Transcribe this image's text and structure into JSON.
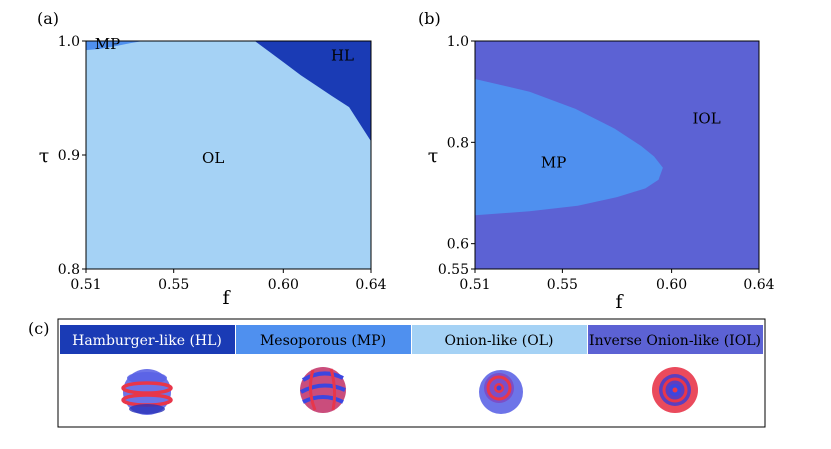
{
  "colors": {
    "HL": "#1a3bb5",
    "MP": "#4f90ef",
    "OL": "#a5d2f5",
    "IOL": "#5c62d4",
    "red": "#e8364a",
    "blue": "#3c46e0"
  },
  "chart_data": [
    {
      "panel": "(a)",
      "type": "area",
      "title": "",
      "xlabel": "f",
      "ylabel": "τ",
      "xlim": [
        0.51,
        0.64
      ],
      "ylim": [
        0.8,
        1.0
      ],
      "xticks": [
        0.51,
        0.55,
        0.6,
        0.64
      ],
      "xtick_labels": [
        "0.51",
        "0.55",
        "0.60",
        "0.64"
      ],
      "yticks": [
        0.8,
        0.9,
        1.0
      ],
      "ytick_labels": [
        "0.8",
        "0.9",
        "1.0"
      ],
      "background_phase": "OL",
      "regions": [
        {
          "name": "MP",
          "label": "MP",
          "label_at": [
            0.514,
            0.993
          ],
          "boundary": [
            [
              0.51,
              0.992
            ],
            [
              0.516,
              0.993
            ],
            [
              0.522,
              0.995
            ],
            [
              0.53,
              0.998
            ],
            [
              0.536,
              1.0
            ]
          ]
        },
        {
          "name": "HL",
          "label": "HL",
          "label_at": [
            0.627,
            0.983
          ],
          "boundary": [
            [
              0.587,
              1.0
            ],
            [
              0.594,
              0.99
            ],
            [
              0.601,
              0.98
            ],
            [
              0.608,
              0.97
            ],
            [
              0.615,
              0.961
            ],
            [
              0.622,
              0.952
            ],
            [
              0.63,
              0.942
            ],
            [
              0.64,
              0.912
            ]
          ]
        }
      ],
      "annotations": [
        {
          "text": "OL",
          "at": [
            0.568,
            0.893
          ]
        }
      ]
    },
    {
      "panel": "(b)",
      "type": "area",
      "title": "",
      "xlabel": "f",
      "ylabel": "τ",
      "xlim": [
        0.51,
        0.64
      ],
      "ylim": [
        0.55,
        1.0
      ],
      "xticks": [
        0.51,
        0.55,
        0.6,
        0.64
      ],
      "xtick_labels": [
        "0.51",
        "0.55",
        "0.60",
        "0.64"
      ],
      "yticks": [
        0.55,
        0.6,
        0.8,
        1.0
      ],
      "ytick_labels": [
        "0.55",
        "0.6",
        "0.8",
        "1.0"
      ],
      "background_phase": "IOL",
      "regions": [
        {
          "name": "MP",
          "label": "MP",
          "label_at": [
            0.546,
            0.75
          ],
          "boundary": [
            [
              0.51,
              0.925
            ],
            [
              0.535,
              0.9
            ],
            [
              0.556,
              0.866
            ],
            [
              0.574,
              0.827
            ],
            [
              0.586,
              0.793
            ],
            [
              0.592,
              0.772
            ],
            [
              0.596,
              0.75
            ],
            [
              0.594,
              0.726
            ],
            [
              0.588,
              0.709
            ],
            [
              0.575,
              0.692
            ],
            [
              0.557,
              0.675
            ],
            [
              0.535,
              0.664
            ],
            [
              0.51,
              0.656
            ]
          ]
        }
      ],
      "annotations": [
        {
          "text": "IOL",
          "at": [
            0.616,
            0.837
          ]
        }
      ]
    }
  ],
  "legend_panel": {
    "label": "(c)",
    "items": [
      {
        "name": "HL",
        "text": "Hamburger-like (HL)"
      },
      {
        "name": "MP",
        "text": "Mesoporous (MP)"
      },
      {
        "name": "OL",
        "text": "Onion-like (OL)"
      },
      {
        "name": "IOL",
        "text": "Inverse Onion-like (IOL)"
      }
    ]
  }
}
